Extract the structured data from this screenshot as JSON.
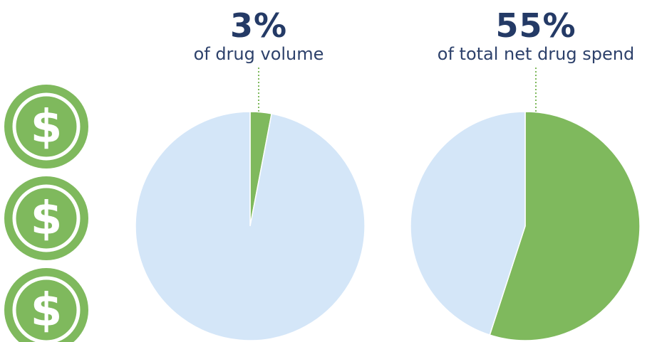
{
  "colors": {
    "accent_green": "#7fb95d",
    "pie_background": "#d4e6f8",
    "text_navy": "#243a66",
    "leader_dotted": "#7fb95d"
  },
  "icons": {
    "symbol": "$",
    "name": "dollar-coin-icon",
    "count": 3
  },
  "chart_data": [
    {
      "type": "pie",
      "title": "3%",
      "subtitle": "of drug volume",
      "slices": [
        {
          "value": 3,
          "color": "#7fb95d"
        },
        {
          "value": 97,
          "color": "#d4e6f8"
        }
      ]
    },
    {
      "type": "pie",
      "title": "55%",
      "subtitle": "of total net drug spend",
      "slices": [
        {
          "value": 55,
          "color": "#7fb95d"
        },
        {
          "value": 45,
          "color": "#d4e6f8"
        }
      ]
    }
  ]
}
